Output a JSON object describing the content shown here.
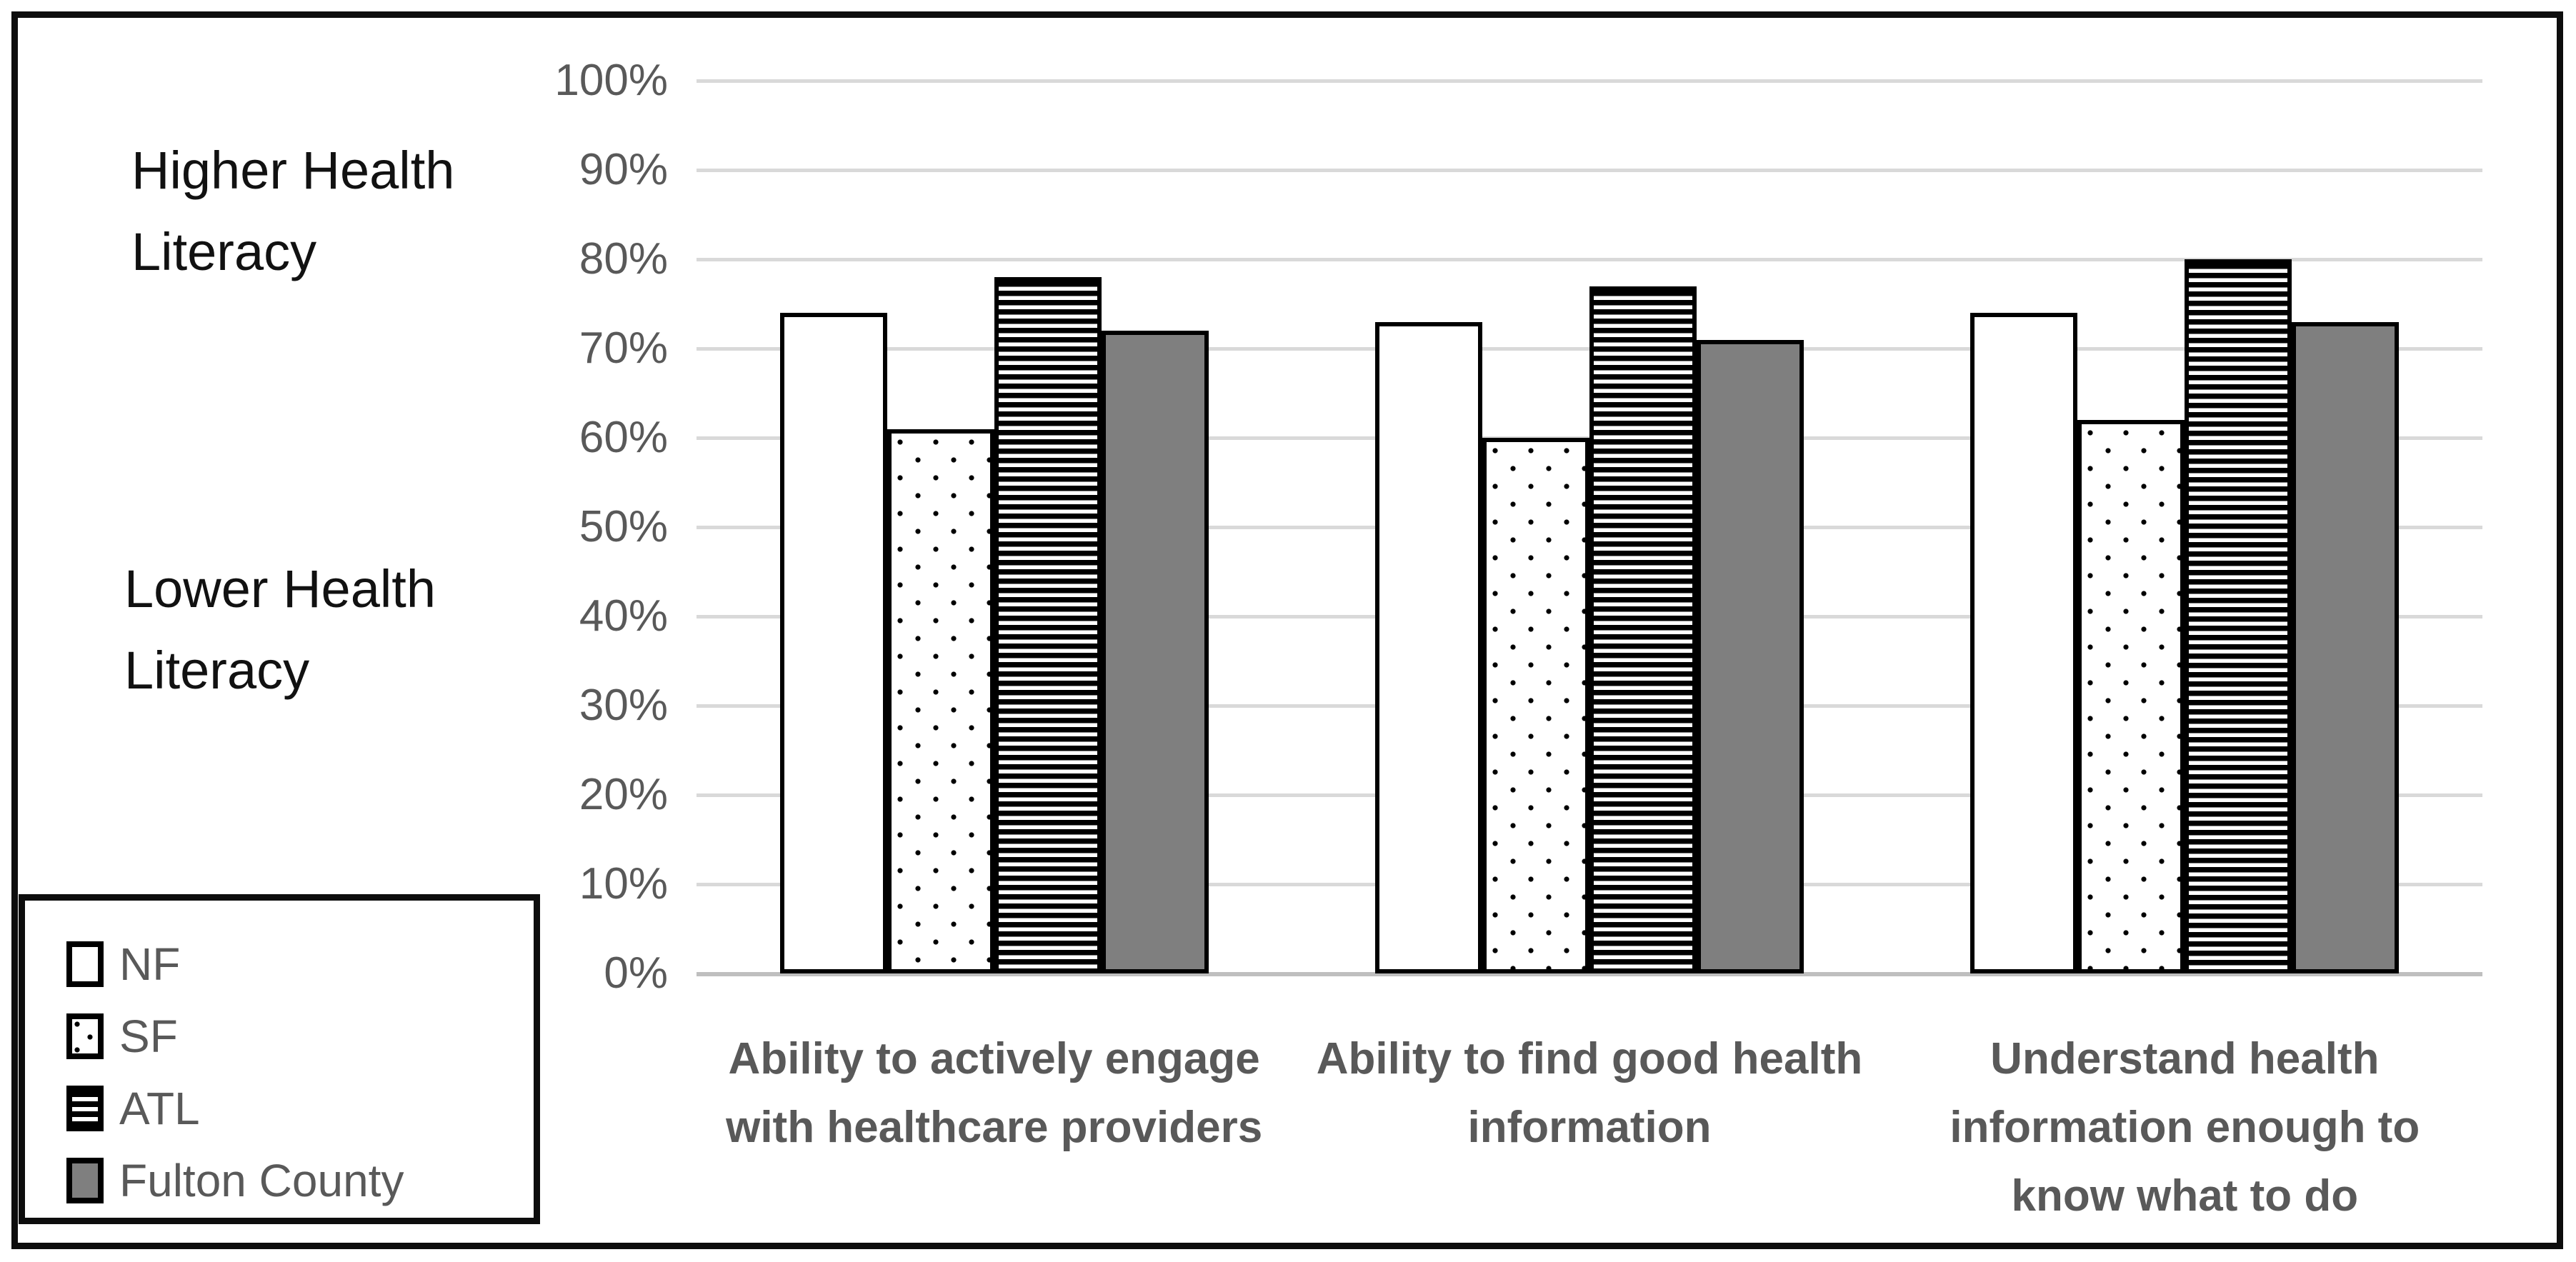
{
  "annotations": {
    "higher_label": "Higher Health\nLiteracy",
    "lower_label": "Lower Health\nLiteracy"
  },
  "chart_data": {
    "type": "bar",
    "title": "",
    "categories": [
      "Ability to actively engage\nwith healthcare providers",
      "Ability to find good health\ninformation",
      "Understand health\ninformation enough to\nknow what to do"
    ],
    "series": [
      {
        "name": "NF",
        "pattern": "plain",
        "values": [
          74,
          73,
          74
        ]
      },
      {
        "name": "SF",
        "pattern": "dots",
        "values": [
          61,
          60,
          62
        ]
      },
      {
        "name": "ATL",
        "pattern": "hstripes",
        "values": [
          78,
          77,
          80
        ]
      },
      {
        "name": "Fulton County",
        "pattern": "solid",
        "values": [
          72,
          71,
          73
        ]
      }
    ],
    "ylabel": "",
    "xlabel": "",
    "ylim": [
      0,
      100
    ],
    "ytick_step": 10,
    "ytick_labels": [
      "0%",
      "10%",
      "20%",
      "30%",
      "40%",
      "50%",
      "60%",
      "70%",
      "80%",
      "90%",
      "100%"
    ],
    "grid": true,
    "legend_position": "bottom-left",
    "legend_entries": [
      "NF",
      "SF",
      "ATL",
      "Fulton County"
    ]
  },
  "colors": {
    "background": "#ffffff",
    "frame_border": "#0d0d0d",
    "bar_outline": "#000000",
    "fulton_fill": "#7f7f7f",
    "gridline": "#d9d9d9",
    "baseline": "#bfbfbf",
    "axis_text": "#595959",
    "annotation_text": "#111111"
  }
}
